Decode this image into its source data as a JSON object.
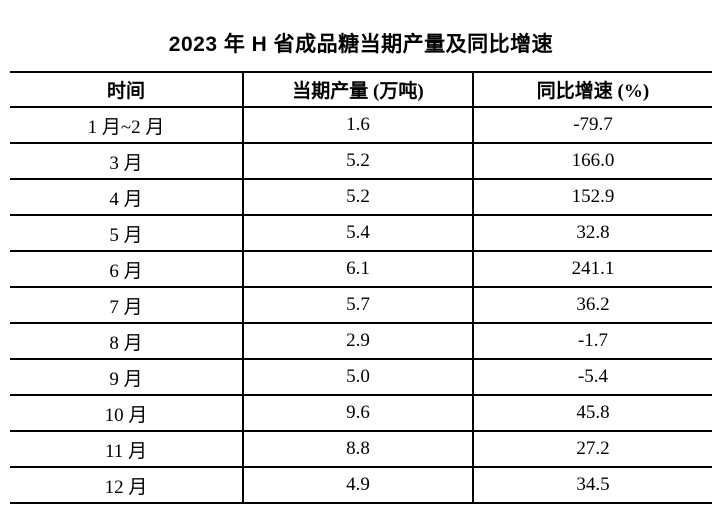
{
  "title": "2023 年 H 省成品糖当期产量及同比增速",
  "table": {
    "headers": [
      "时间",
      "当期产量 (万吨)",
      "同比增速 (%)"
    ],
    "rows": [
      [
        "1 月~2 月",
        "1.6",
        "-79.7"
      ],
      [
        "3 月",
        "5.2",
        "166.0"
      ],
      [
        "4 月",
        "5.2",
        "152.9"
      ],
      [
        "5 月",
        "5.4",
        "32.8"
      ],
      [
        "6 月",
        "6.1",
        "241.1"
      ],
      [
        "7 月",
        "5.7",
        "36.2"
      ],
      [
        "8 月",
        "2.9",
        "-1.7"
      ],
      [
        "9 月",
        "5.0",
        "-5.4"
      ],
      [
        "10 月",
        "9.6",
        "45.8"
      ],
      [
        "11 月",
        "8.8",
        "27.2"
      ],
      [
        "12 月",
        "4.9",
        "34.5"
      ]
    ]
  },
  "colors": {
    "text": "#000000",
    "background": "#ffffff",
    "border": "#000000"
  }
}
